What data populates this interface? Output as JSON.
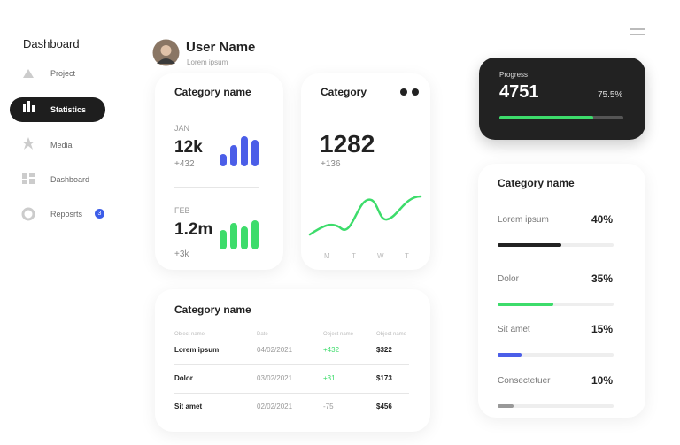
{
  "sidebar": {
    "title": "Dashboard",
    "items": [
      "Project",
      "Statistics",
      "Media",
      "Dashboard",
      "Reposrts"
    ],
    "badge": "3"
  },
  "user": {
    "name": "User Name",
    "subtitle": "Lorem ipsum"
  },
  "card_months": {
    "title": "Category name",
    "items": [
      {
        "month": "JAN",
        "value": "12k",
        "change": "+432"
      },
      {
        "month": "FEB",
        "value": "1.2m",
        "change": "+3k"
      }
    ]
  },
  "card_category": {
    "title": "Category",
    "value": "1282",
    "change": "+136",
    "days": [
      "M",
      "T",
      "W",
      "T"
    ]
  },
  "progress": {
    "label": "Progress",
    "value": "4751",
    "percent": "75.5%"
  },
  "card_breakdown": {
    "title": "Category name",
    "items": [
      {
        "label": "Lorem ipsum",
        "percent": "40%"
      },
      {
        "label": "Dolor",
        "percent": "35%"
      },
      {
        "label": "Sit amet",
        "percent": "15%"
      },
      {
        "label": "Consectetuer",
        "percent": "10%"
      }
    ]
  },
  "table": {
    "title": "Category name",
    "headers": [
      "Object name",
      "Date",
      "Object name",
      "Object name"
    ],
    "rows": [
      [
        "Lorem ipsum",
        "04/02/2021",
        "+432",
        "$322"
      ],
      [
        "Dolor",
        "03/02/2021",
        "+31",
        "$173"
      ],
      [
        "Sit amet",
        "02/02/2021",
        "-75",
        "$456"
      ]
    ]
  }
}
